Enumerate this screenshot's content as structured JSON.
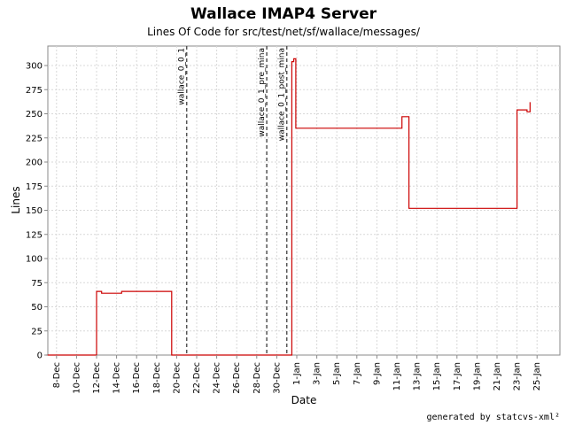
{
  "chart_data": {
    "type": "line",
    "title": "Wallace IMAP4 Server",
    "subtitle": "Lines Of Code for src/test/net/sf/wallace/messages/",
    "xlabel": "Date",
    "ylabel": "Lines",
    "footer": "generated by statcvs-xml²",
    "x_tick_labels": [
      "8-Dec",
      "10-Dec",
      "12-Dec",
      "14-Dec",
      "16-Dec",
      "18-Dec",
      "20-Dec",
      "22-Dec",
      "24-Dec",
      "26-Dec",
      "28-Dec",
      "30-Dec",
      "1-Jan",
      "3-Jan",
      "5-Jan",
      "7-Jan",
      "9-Jan",
      "11-Jan",
      "13-Jan",
      "15-Jan",
      "17-Jan",
      "19-Jan",
      "21-Jan",
      "23-Jan",
      "25-Jan"
    ],
    "y_ticks": [
      0,
      25,
      50,
      75,
      100,
      125,
      150,
      175,
      200,
      225,
      250,
      275,
      300
    ],
    "ylim": [
      0,
      320
    ],
    "grid": true,
    "series_color": "#cc0000",
    "marker_color": "#555555",
    "series": [
      {
        "points": [
          [
            "7-Dec",
            0
          ],
          [
            "12-Dec",
            0
          ],
          [
            "12-Dec",
            66
          ],
          [
            "12.5-Dec",
            66
          ],
          [
            "12.5-Dec",
            64
          ],
          [
            "14.5-Dec",
            64
          ],
          [
            "14.5-Dec",
            66
          ],
          [
            "19.5-Dec",
            66
          ],
          [
            "19.5-Dec",
            0
          ],
          [
            "31.5-Dec",
            0
          ],
          [
            "31.5-Dec",
            304
          ],
          [
            "31.7-Dec",
            304
          ],
          [
            "31.7-Dec",
            307
          ],
          [
            "31.9-Dec",
            307
          ],
          [
            "31.9-Dec",
            235
          ],
          [
            "11.5-Jan",
            235
          ],
          [
            "11.5-Jan",
            247
          ],
          [
            "12.2-Jan",
            247
          ],
          [
            "12.2-Jan",
            152
          ],
          [
            "23-Jan",
            152
          ],
          [
            "23-Jan",
            254
          ],
          [
            "24-Jan",
            254
          ],
          [
            "24-Jan",
            252
          ],
          [
            "24.3-Jan",
            252
          ],
          [
            "24.3-Jan",
            262
          ]
        ]
      }
    ],
    "markers": [
      {
        "label": "wallace_0_0_1",
        "x": "21-Dec"
      },
      {
        "label": "wallace_0_1_pre_mina",
        "x": "29-Dec"
      },
      {
        "label": "wallace_0_1_post_mina",
        "x": "31-Dec"
      }
    ]
  }
}
